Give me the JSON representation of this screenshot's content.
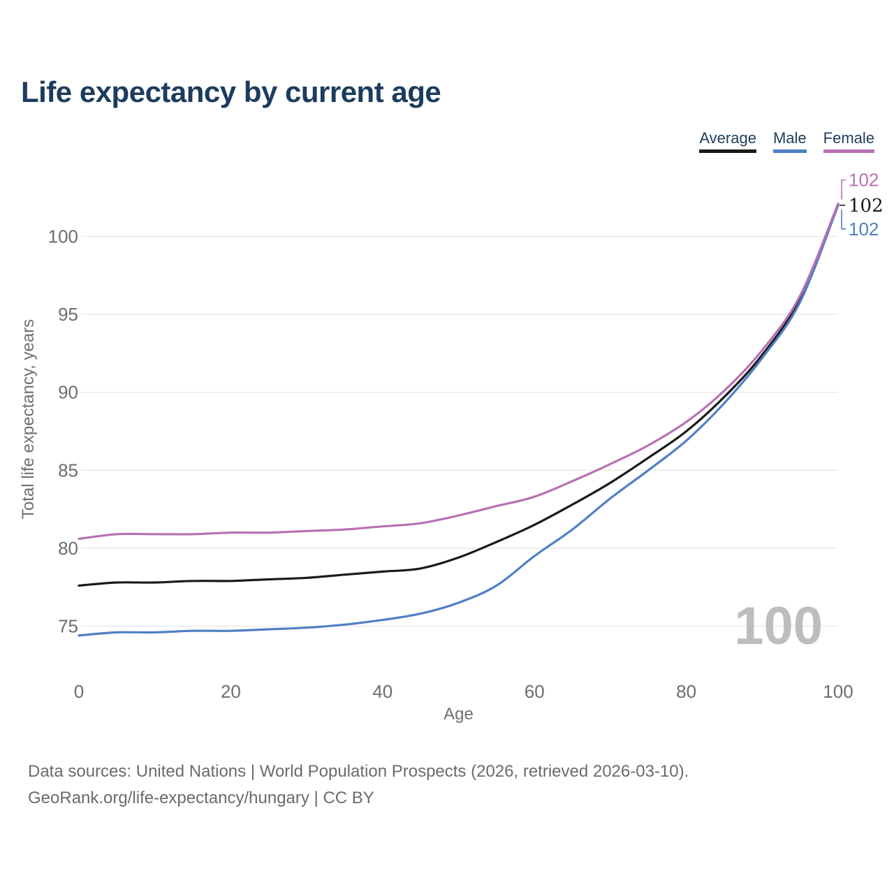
{
  "title": "Life expectancy by current age",
  "legend": {
    "items": [
      {
        "label": "Average",
        "color": "#1a1a1a"
      },
      {
        "label": "Male",
        "color": "#4f7fc4"
      },
      {
        "label": "Female",
        "color": "#b870b4"
      }
    ]
  },
  "chart_data": {
    "type": "line",
    "title": "Life expectancy by current age",
    "xlabel": "Age",
    "ylabel": "Total life expectancy, years",
    "xlim": [
      0,
      100
    ],
    "ylim": [
      73,
      104
    ],
    "xticks": [
      0,
      20,
      40,
      60,
      80,
      100
    ],
    "yticks": [
      75,
      80,
      85,
      90,
      95,
      100
    ],
    "grid": "horizontal-only",
    "legend_position": "top-right",
    "x": [
      0,
      5,
      10,
      15,
      20,
      25,
      30,
      35,
      40,
      45,
      50,
      55,
      60,
      65,
      70,
      75,
      80,
      85,
      90,
      95,
      100
    ],
    "series": [
      {
        "name": "Average",
        "color": "#1a1a1a",
        "end_label": "102",
        "values": [
          77.6,
          77.8,
          77.8,
          77.9,
          77.9,
          78.0,
          78.1,
          78.3,
          78.5,
          78.7,
          79.4,
          80.4,
          81.5,
          82.8,
          84.2,
          85.8,
          87.5,
          89.7,
          92.4,
          96.0,
          102.0
        ]
      },
      {
        "name": "Male",
        "color": "#4f7fc4",
        "end_label": "102",
        "values": [
          74.4,
          74.6,
          74.6,
          74.7,
          74.7,
          74.8,
          74.9,
          75.1,
          75.4,
          75.8,
          76.5,
          77.6,
          79.5,
          81.2,
          83.2,
          85.0,
          86.9,
          89.3,
          92.2,
          95.8,
          102.0
        ]
      },
      {
        "name": "Female",
        "color": "#b870b4",
        "end_label": "102",
        "values": [
          80.6,
          80.9,
          80.9,
          80.9,
          81.0,
          81.0,
          81.1,
          81.2,
          81.4,
          81.6,
          82.1,
          82.7,
          83.3,
          84.3,
          85.4,
          86.6,
          88.1,
          90.1,
          92.7,
          96.2,
          102.1
        ]
      }
    ],
    "watermark": "100"
  },
  "footer": {
    "line1": "Data sources: United Nations | World Population Prospects (2026, retrieved 2026-03-10).",
    "line2": "GeoRank.org/life-expectancy/hungary | CC BY"
  }
}
